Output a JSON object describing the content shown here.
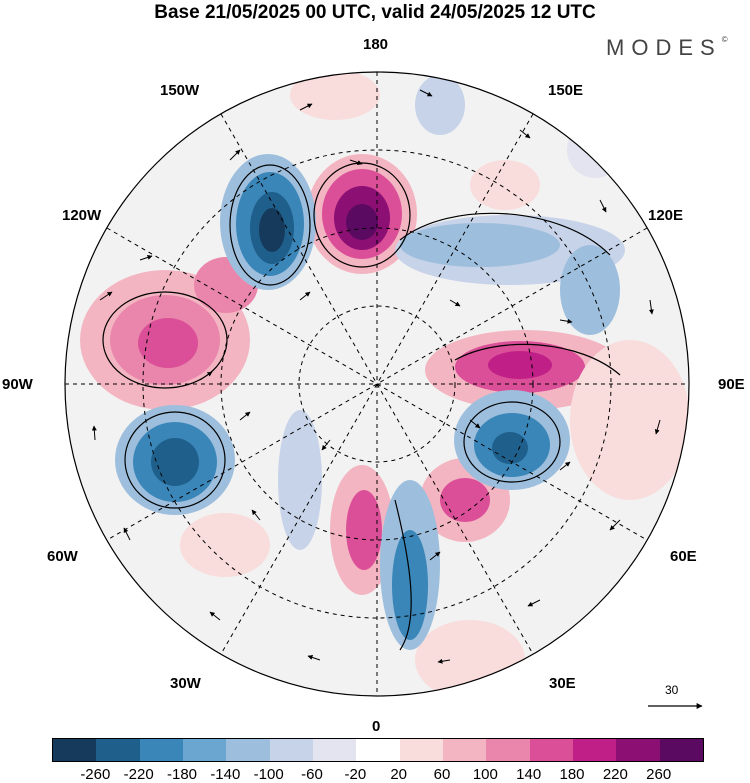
{
  "title": "Base 21/05/2025 00 UTC, valid 24/05/2025 12 UTC",
  "logo": "MODES",
  "logo_mark": "©",
  "longitude_labels": {
    "n180": "180",
    "w150": "150W",
    "e150": "150E",
    "w120": "120W",
    "e120": "120E",
    "w90": "90W",
    "e90": "90E",
    "w60": "60W",
    "e60": "60E",
    "w30": "30W",
    "e30": "30E",
    "s0": "0"
  },
  "reference_vector": {
    "label": "30"
  },
  "colorbar": {
    "colors": [
      "#163a5c",
      "#1f5f8b",
      "#3a86b8",
      "#6aa6cf",
      "#9dbfdd",
      "#c7d3e8",
      "#e4e4f0",
      "#ffffff",
      "#f9dcdc",
      "#f3b5c1",
      "#ea86ab",
      "#db4f98",
      "#c01f87",
      "#8c0f74",
      "#5b0a62"
    ],
    "tick_labels": [
      "-260",
      "-220",
      "-180",
      "-140",
      "-100",
      "-60",
      "-20",
      "20",
      "60",
      "100",
      "140",
      "180",
      "220",
      "260"
    ]
  }
}
